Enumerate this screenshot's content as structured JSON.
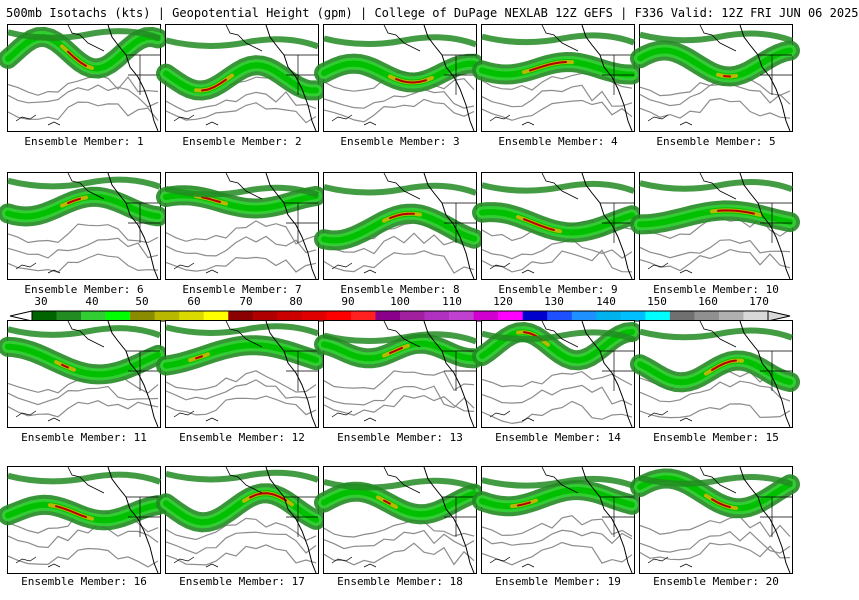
{
  "header": {
    "title": "500mb Isotachs (kts) | Geopotential Height (gpm) | College of DuPage NEXLAB",
    "run_info": "12Z GEFS | F336 Valid: 12Z FRI JUN 06 2025"
  },
  "color_scale": {
    "labels": [
      "30",
      "40",
      "50",
      "60",
      "70",
      "80",
      "90",
      "100",
      "110",
      "120",
      "130",
      "140",
      "150",
      "160",
      "170"
    ],
    "colors": [
      "#006400",
      "#228b22",
      "#32cd32",
      "#00ff00",
      "#8b8b00",
      "#b8b800",
      "#dada00",
      "#ffff00",
      "#8b0000",
      "#b00000",
      "#cd0000",
      "#e00000",
      "#ff0000",
      "#ff2020",
      "#8b008b",
      "#a020a0",
      "#b030c0",
      "#c040d0",
      "#d000d0",
      "#ff00ff",
      "#0000cd",
      "#1e50ff",
      "#1e90ff",
      "#00b2ee",
      "#00bfff",
      "#00ffff",
      "#707070",
      "#909090",
      "#b0b0b0",
      "#d8d8d8"
    ]
  },
  "panels": [
    {
      "caption": "Ensemble Member: 1"
    },
    {
      "caption": "Ensemble Member: 2"
    },
    {
      "caption": "Ensemble Member: 3"
    },
    {
      "caption": "Ensemble Member: 4"
    },
    {
      "caption": "Ensemble Member: 5"
    },
    {
      "caption": "Ensemble Member: 6"
    },
    {
      "caption": "Ensemble Member: 7"
    },
    {
      "caption": "Ensemble Member: 8"
    },
    {
      "caption": "Ensemble Member: 9"
    },
    {
      "caption": "Ensemble Member: 10"
    },
    {
      "caption": "Ensemble Member: 11"
    },
    {
      "caption": "Ensemble Member: 12"
    },
    {
      "caption": "Ensemble Member: 13"
    },
    {
      "caption": "Ensemble Member: 14"
    },
    {
      "caption": "Ensemble Member: 15"
    },
    {
      "caption": "Ensemble Member: 16"
    },
    {
      "caption": "Ensemble Member: 17"
    },
    {
      "caption": "Ensemble Member: 18"
    },
    {
      "caption": "Ensemble Member: 19"
    },
    {
      "caption": "Ensemble Member: 20"
    }
  ]
}
